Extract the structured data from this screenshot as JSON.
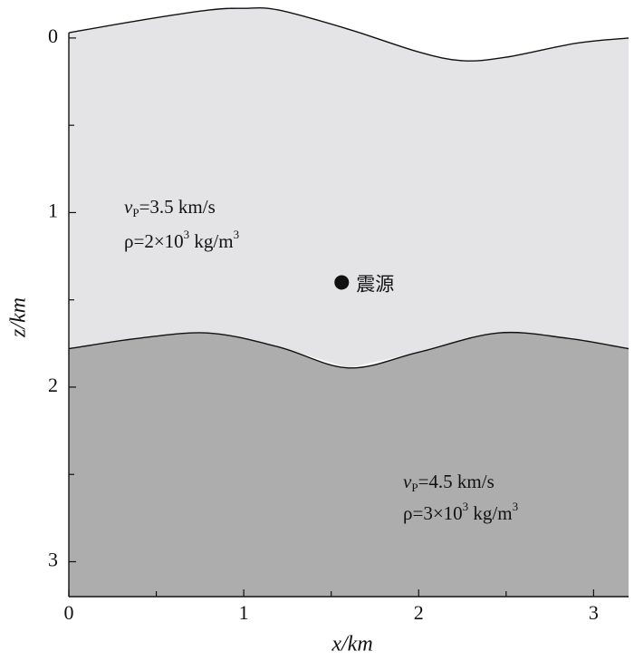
{
  "chart_data": {
    "type": "layered-model",
    "xlabel": "x/km",
    "ylabel": "z/km",
    "xlim": [
      0,
      3.2
    ],
    "ylim": [
      3.2,
      -0.2
    ],
    "xticks": [
      0,
      1,
      2,
      3
    ],
    "yticks": [
      0,
      1,
      2,
      3
    ],
    "xminorticks": [
      0.5,
      1.5,
      2.5
    ],
    "yminorticks": [
      0.5,
      1.5,
      2.5
    ],
    "surface": {
      "x": [
        0,
        0.4,
        0.8,
        1.0,
        1.2,
        1.6,
        2.0,
        2.25,
        2.5,
        2.9,
        3.2
      ],
      "z": [
        -0.03,
        -0.1,
        -0.16,
        -0.17,
        -0.16,
        -0.05,
        0.08,
        0.13,
        0.11,
        0.03,
        0.0
      ]
    },
    "interface": {
      "x": [
        0,
        0.4,
        0.8,
        1.2,
        1.6,
        2.0,
        2.45,
        2.85,
        3.2
      ],
      "z": [
        1.78,
        1.72,
        1.69,
        1.77,
        1.89,
        1.8,
        1.69,
        1.72,
        1.78
      ]
    },
    "layers": [
      {
        "color": "#e4e4e7",
        "vp": [
          "v",
          "P",
          "=3.5 km/s"
        ],
        "rho": [
          "ρ=2×10",
          "3",
          " kg/m",
          "3"
        ]
      },
      {
        "color": "#adadad",
        "vp": [
          "v",
          "P",
          "=4.5 km/s"
        ],
        "rho": [
          "ρ=3×10",
          "3",
          " kg/m",
          "3"
        ]
      }
    ],
    "source": {
      "x": 1.56,
      "z": 1.4,
      "label": "震源"
    }
  }
}
